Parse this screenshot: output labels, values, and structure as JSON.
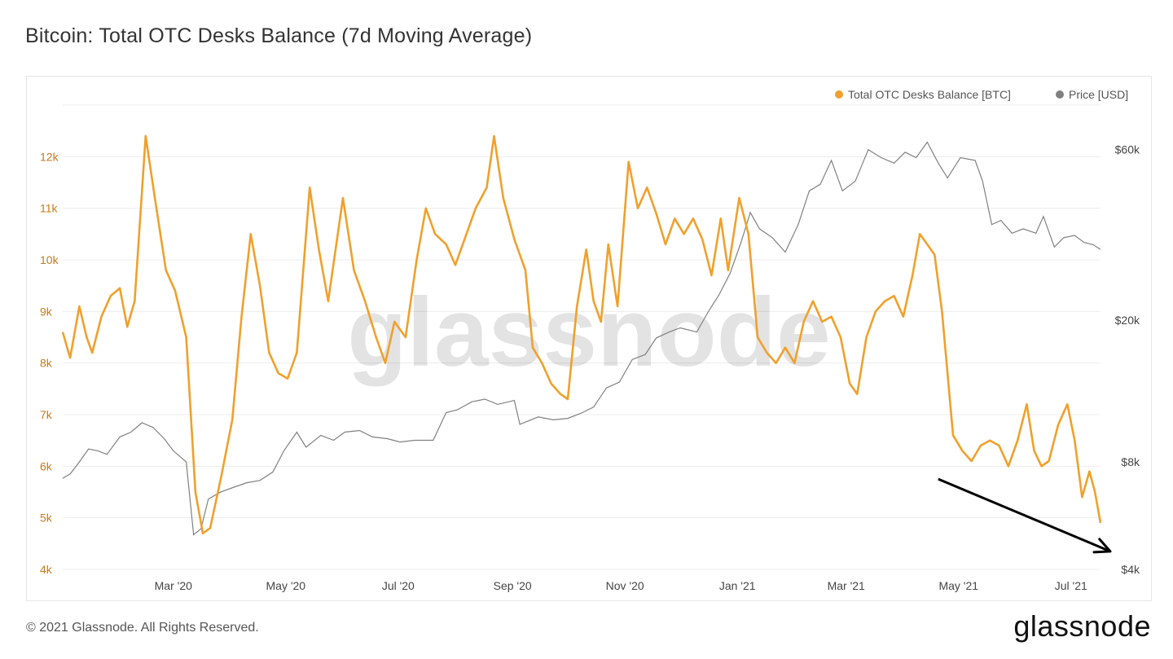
{
  "title": "Bitcoin: Total OTC Desks Balance (7d Moving Average)",
  "footer": {
    "copyright": "© 2021 Glassnode. All Rights Reserved.",
    "logo": "glassnode"
  },
  "watermark": "glassnode",
  "colors": {
    "otc": "#f0a02c",
    "price": "#808080",
    "grid": "#ececec",
    "arrow": "#000000"
  },
  "chart_data": {
    "type": "line",
    "legend_placement": "top-right",
    "grid": true,
    "x_ticks": [
      "Mar '20",
      "May '20",
      "Jul '20",
      "Sep '20",
      "Nov '20",
      "Jan '21",
      "Mar '21",
      "May '21",
      "Jul '21"
    ],
    "y_left": {
      "ticks": [
        "4k",
        "5k",
        "6k",
        "7k",
        "8k",
        "9k",
        "10k",
        "11k",
        "12k"
      ],
      "lim": [
        4000,
        13000
      ],
      "scale": "linear"
    },
    "y_right": {
      "ticks": [
        "$4k",
        "$8k",
        "$20k",
        "$60k"
      ],
      "lim": [
        4000,
        80000
      ],
      "scale": "log"
    },
    "series": [
      {
        "name": "Total OTC Desks Balance [BTC]",
        "axis": "left",
        "points": [
          [
            "2020-01-01",
            8600
          ],
          [
            "2020-01-05",
            8100
          ],
          [
            "2020-01-10",
            9100
          ],
          [
            "2020-01-14",
            8500
          ],
          [
            "2020-01-17",
            8200
          ],
          [
            "2020-01-22",
            8900
          ],
          [
            "2020-01-27",
            9300
          ],
          [
            "2020-02-01",
            9450
          ],
          [
            "2020-02-05",
            8700
          ],
          [
            "2020-02-09",
            9200
          ],
          [
            "2020-02-15",
            12400
          ],
          [
            "2020-02-20",
            11200
          ],
          [
            "2020-02-26",
            9800
          ],
          [
            "2020-03-02",
            9400
          ],
          [
            "2020-03-08",
            8500
          ],
          [
            "2020-03-13",
            5500
          ],
          [
            "2020-03-17",
            4700
          ],
          [
            "2020-03-21",
            4800
          ],
          [
            "2020-03-27",
            5800
          ],
          [
            "2020-04-02",
            6900
          ],
          [
            "2020-04-07",
            8900
          ],
          [
            "2020-04-12",
            10500
          ],
          [
            "2020-04-17",
            9500
          ],
          [
            "2020-04-22",
            8200
          ],
          [
            "2020-04-27",
            7800
          ],
          [
            "2020-05-02",
            7700
          ],
          [
            "2020-05-07",
            8200
          ],
          [
            "2020-05-14",
            11400
          ],
          [
            "2020-05-19",
            10200
          ],
          [
            "2020-05-24",
            9200
          ],
          [
            "2020-06-01",
            11200
          ],
          [
            "2020-06-07",
            9800
          ],
          [
            "2020-06-13",
            9200
          ],
          [
            "2020-06-19",
            8500
          ],
          [
            "2020-06-24",
            8000
          ],
          [
            "2020-06-29",
            8800
          ],
          [
            "2020-07-05",
            8500
          ],
          [
            "2020-07-11",
            10000
          ],
          [
            "2020-07-16",
            11000
          ],
          [
            "2020-07-21",
            10500
          ],
          [
            "2020-07-27",
            10300
          ],
          [
            "2020-08-01",
            9900
          ],
          [
            "2020-08-07",
            10500
          ],
          [
            "2020-08-12",
            11000
          ],
          [
            "2020-08-18",
            11400
          ],
          [
            "2020-08-22",
            12400
          ],
          [
            "2020-08-27",
            11200
          ],
          [
            "2020-09-02",
            10400
          ],
          [
            "2020-09-08",
            9800
          ],
          [
            "2020-09-12",
            8300
          ],
          [
            "2020-09-17",
            8000
          ],
          [
            "2020-09-22",
            7600
          ],
          [
            "2020-09-27",
            7400
          ],
          [
            "2020-10-01",
            7300
          ],
          [
            "2020-10-06",
            9100
          ],
          [
            "2020-10-11",
            10200
          ],
          [
            "2020-10-15",
            9200
          ],
          [
            "2020-10-19",
            8800
          ],
          [
            "2020-10-23",
            10300
          ],
          [
            "2020-10-28",
            9100
          ],
          [
            "2020-11-03",
            11900
          ],
          [
            "2020-11-08",
            11000
          ],
          [
            "2020-11-13",
            11400
          ],
          [
            "2020-11-18",
            10900
          ],
          [
            "2020-11-23",
            10300
          ],
          [
            "2020-11-28",
            10800
          ],
          [
            "2020-12-03",
            10500
          ],
          [
            "2020-12-08",
            10800
          ],
          [
            "2020-12-13",
            10400
          ],
          [
            "2020-12-18",
            9700
          ],
          [
            "2020-12-23",
            10800
          ],
          [
            "2020-12-27",
            9800
          ],
          [
            "2021-01-02",
            11200
          ],
          [
            "2021-01-07",
            10500
          ],
          [
            "2021-01-12",
            8500
          ],
          [
            "2021-01-17",
            8200
          ],
          [
            "2021-01-22",
            8000
          ],
          [
            "2021-01-27",
            8300
          ],
          [
            "2021-02-01",
            8000
          ],
          [
            "2021-02-06",
            8800
          ],
          [
            "2021-02-11",
            9200
          ],
          [
            "2021-02-16",
            8800
          ],
          [
            "2021-02-21",
            8900
          ],
          [
            "2021-02-26",
            8500
          ],
          [
            "2021-03-03",
            7600
          ],
          [
            "2021-03-07",
            7400
          ],
          [
            "2021-03-12",
            8500
          ],
          [
            "2021-03-17",
            9000
          ],
          [
            "2021-03-22",
            9200
          ],
          [
            "2021-03-27",
            9300
          ],
          [
            "2021-04-01",
            8900
          ],
          [
            "2021-04-06",
            9700
          ],
          [
            "2021-04-10",
            10500
          ],
          [
            "2021-04-14",
            10300
          ],
          [
            "2021-04-18",
            10100
          ],
          [
            "2021-04-22",
            9000
          ],
          [
            "2021-04-28",
            6600
          ],
          [
            "2021-05-03",
            6300
          ],
          [
            "2021-05-08",
            6100
          ],
          [
            "2021-05-13",
            6400
          ],
          [
            "2021-05-18",
            6500
          ],
          [
            "2021-05-23",
            6400
          ],
          [
            "2021-05-28",
            6000
          ],
          [
            "2021-06-02",
            6500
          ],
          [
            "2021-06-07",
            7200
          ],
          [
            "2021-06-11",
            6300
          ],
          [
            "2021-06-15",
            6000
          ],
          [
            "2021-06-19",
            6100
          ],
          [
            "2021-06-24",
            6800
          ],
          [
            "2021-06-29",
            7200
          ],
          [
            "2021-07-03",
            6500
          ],
          [
            "2021-07-07",
            5400
          ],
          [
            "2021-07-11",
            5900
          ],
          [
            "2021-07-14",
            5500
          ],
          [
            "2021-07-17",
            4900
          ]
        ]
      },
      {
        "name": "Price [USD]",
        "axis": "right",
        "points": [
          [
            "2020-01-01",
            7200
          ],
          [
            "2020-01-05",
            7400
          ],
          [
            "2020-01-10",
            8000
          ],
          [
            "2020-01-15",
            8700
          ],
          [
            "2020-01-20",
            8600
          ],
          [
            "2020-01-25",
            8400
          ],
          [
            "2020-02-01",
            9400
          ],
          [
            "2020-02-07",
            9700
          ],
          [
            "2020-02-13",
            10300
          ],
          [
            "2020-02-19",
            10000
          ],
          [
            "2020-02-25",
            9300
          ],
          [
            "2020-03-01",
            8600
          ],
          [
            "2020-03-08",
            8000
          ],
          [
            "2020-03-12",
            5000
          ],
          [
            "2020-03-16",
            5200
          ],
          [
            "2020-03-20",
            6300
          ],
          [
            "2020-03-27",
            6600
          ],
          [
            "2020-04-03",
            6800
          ],
          [
            "2020-04-10",
            7000
          ],
          [
            "2020-04-17",
            7100
          ],
          [
            "2020-04-24",
            7500
          ],
          [
            "2020-04-30",
            8600
          ],
          [
            "2020-05-07",
            9700
          ],
          [
            "2020-05-12",
            8800
          ],
          [
            "2020-05-20",
            9500
          ],
          [
            "2020-05-27",
            9200
          ],
          [
            "2020-06-02",
            9700
          ],
          [
            "2020-06-10",
            9800
          ],
          [
            "2020-06-17",
            9400
          ],
          [
            "2020-06-25",
            9300
          ],
          [
            "2020-07-02",
            9100
          ],
          [
            "2020-07-10",
            9200
          ],
          [
            "2020-07-20",
            9200
          ],
          [
            "2020-07-27",
            11000
          ],
          [
            "2020-08-02",
            11200
          ],
          [
            "2020-08-10",
            11800
          ],
          [
            "2020-08-17",
            12000
          ],
          [
            "2020-08-24",
            11600
          ],
          [
            "2020-09-02",
            11900
          ],
          [
            "2020-09-05",
            10200
          ],
          [
            "2020-09-15",
            10700
          ],
          [
            "2020-09-23",
            10500
          ],
          [
            "2020-10-01",
            10600
          ],
          [
            "2020-10-09",
            11000
          ],
          [
            "2020-10-15",
            11400
          ],
          [
            "2020-10-22",
            12900
          ],
          [
            "2020-10-29",
            13400
          ],
          [
            "2020-11-05",
            15500
          ],
          [
            "2020-11-12",
            16000
          ],
          [
            "2020-11-18",
            17800
          ],
          [
            "2020-11-25",
            18500
          ],
          [
            "2020-12-01",
            19000
          ],
          [
            "2020-12-10",
            18500
          ],
          [
            "2020-12-16",
            21000
          ],
          [
            "2020-12-22",
            23500
          ],
          [
            "2020-12-28",
            27000
          ],
          [
            "2021-01-03",
            33000
          ],
          [
            "2021-01-08",
            40000
          ],
          [
            "2021-01-13",
            36000
          ],
          [
            "2021-01-20",
            34000
          ],
          [
            "2021-01-27",
            31000
          ],
          [
            "2021-02-03",
            37000
          ],
          [
            "2021-02-09",
            46000
          ],
          [
            "2021-02-15",
            48000
          ],
          [
            "2021-02-21",
            56000
          ],
          [
            "2021-02-27",
            46000
          ],
          [
            "2021-03-06",
            49000
          ],
          [
            "2021-03-13",
            60000
          ],
          [
            "2021-03-20",
            57000
          ],
          [
            "2021-03-27",
            55000
          ],
          [
            "2021-04-02",
            59000
          ],
          [
            "2021-04-08",
            57000
          ],
          [
            "2021-04-14",
            63000
          ],
          [
            "2021-04-20",
            55000
          ],
          [
            "2021-04-25",
            50000
          ],
          [
            "2021-05-02",
            57000
          ],
          [
            "2021-05-10",
            56000
          ],
          [
            "2021-05-14",
            49000
          ],
          [
            "2021-05-19",
            37000
          ],
          [
            "2021-05-24",
            38000
          ],
          [
            "2021-05-30",
            35000
          ],
          [
            "2021-06-05",
            36000
          ],
          [
            "2021-06-12",
            35000
          ],
          [
            "2021-06-16",
            39000
          ],
          [
            "2021-06-22",
            32000
          ],
          [
            "2021-06-27",
            34000
          ],
          [
            "2021-07-03",
            34500
          ],
          [
            "2021-07-08",
            33000
          ],
          [
            "2021-07-13",
            32500
          ],
          [
            "2021-07-17",
            31500
          ]
        ]
      }
    ],
    "annotations": [
      {
        "type": "arrow",
        "from": [
          "2021-04-20",
          5750
        ],
        "to": [
          "2021-07-17",
          4350
        ],
        "note": "downward trend arrow"
      }
    ]
  }
}
